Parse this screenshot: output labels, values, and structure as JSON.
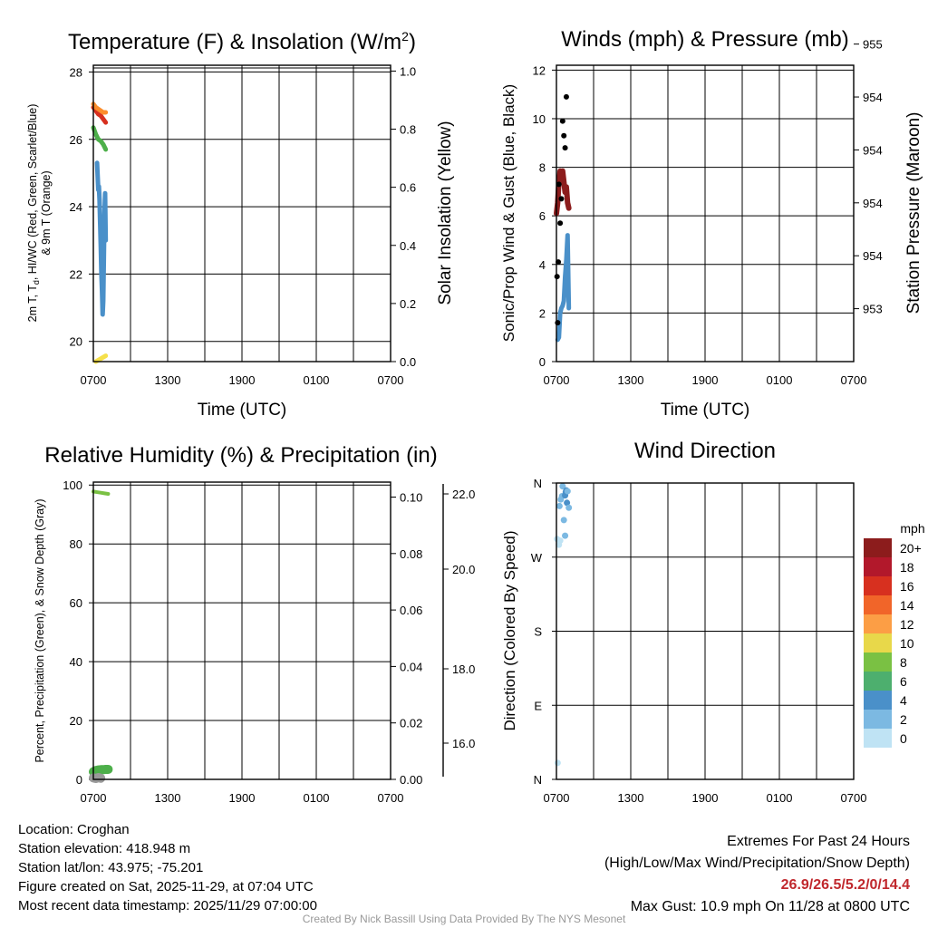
{
  "colors": {
    "temp": "#d7301f",
    "heat_index": "#fc8d2c",
    "dewpoint": "#4daf4a",
    "windchill": "#4a90c9",
    "insolation": "#f5e04a",
    "pressure": "#8c1c1c",
    "gust": "#000000",
    "wind": "#4a90c9",
    "rh": "#7ac143",
    "precip": "#4daf4a",
    "snow": "#999999"
  },
  "chart_data": [
    {
      "id": "temp",
      "type": "line",
      "title": "Temperature (F) & Insolation (W/m",
      "title_sup": "2",
      "title_close": ")",
      "xlabel": "Time (UTC)",
      "ylabel_lines": [
        "2m T, T",
        "d",
        ", HI/WC (Red, Green, Scarlet/Blue)",
        "& 9m T (Orange)"
      ],
      "y2label": "Solar Insolation (Yellow)",
      "xticks": [
        "0700",
        "1300",
        "1900",
        "0100",
        "0700"
      ],
      "ylim": [
        19.4,
        28.2
      ],
      "yticks": [
        "20",
        "22",
        "24",
        "26",
        "28"
      ],
      "y2lim": [
        0,
        1.02
      ],
      "y2ticks": [
        "0.0",
        "0.2",
        "0.4",
        "0.6",
        "0.8",
        "1.0"
      ],
      "xlim": [
        0,
        24
      ],
      "series": [
        {
          "name": "2m T",
          "color": "#d7301f",
          "x": [
            0,
            0.2,
            0.4,
            0.6,
            0.8,
            1.0
          ],
          "y": [
            26.95,
            26.85,
            26.75,
            26.7,
            26.6,
            26.5
          ]
        },
        {
          "name": "9m T",
          "color": "#fc8d2c",
          "x": [
            0,
            0.2,
            0.4,
            0.6,
            0.8,
            1.0
          ],
          "y": [
            27.05,
            26.95,
            26.9,
            26.85,
            26.8,
            26.8
          ]
        },
        {
          "name": "Td",
          "color": "#4daf4a",
          "x": [
            0,
            0.2,
            0.4,
            0.6,
            0.8,
            1.0
          ],
          "y": [
            26.35,
            26.15,
            26.0,
            25.95,
            25.85,
            25.7
          ]
        },
        {
          "name": "WC",
          "color": "#4a90c9",
          "x": [
            0.3,
            0.35,
            0.4,
            0.45,
            0.5,
            0.55,
            0.6,
            0.65,
            0.7,
            0.75,
            0.8,
            0.85,
            0.9,
            0.95,
            1.0
          ],
          "y": [
            25.3,
            24.9,
            24.5,
            24.6,
            24.2,
            23.5,
            22.8,
            22.0,
            21.5,
            20.8,
            21.2,
            22.5,
            23.8,
            24.4,
            23.0
          ]
        },
        {
          "name": "Insolation",
          "color": "#f5e04a",
          "axis": "y2",
          "x": [
            0.2,
            0.6,
            1.0
          ],
          "y": [
            0.0,
            0.01,
            0.02
          ]
        }
      ]
    },
    {
      "id": "wind",
      "type": "line",
      "title": "Winds (mph) & Pressure (mb)",
      "xlabel": "Time (UTC)",
      "ylabel": "Sonic/Prop Wind & Gust (Blue, Black)",
      "y2label": "Station Pressure (Maroon)",
      "xticks": [
        "0700",
        "1300",
        "1900",
        "0100",
        "0700"
      ],
      "ylim": [
        0,
        12.2
      ],
      "yticks": [
        "0",
        "2",
        "4",
        "6",
        "8",
        "10",
        "12"
      ],
      "y2lim": [
        952.5,
        955.3
      ],
      "y2ticks": [
        "953",
        "954",
        "954",
        "954",
        "954",
        "955"
      ],
      "y2tick_values": [
        953.0,
        953.5,
        954.0,
        954.5,
        955.0,
        955.5
      ],
      "xlim": [
        0,
        24
      ],
      "series": [
        {
          "name": "Sonic wind",
          "color": "#4a90c9",
          "x": [
            0.1,
            0.2,
            0.3,
            0.4,
            0.5,
            0.6,
            0.7,
            0.8,
            0.9,
            1.0
          ],
          "y": [
            0.9,
            1.0,
            2.0,
            2.2,
            2.3,
            2.5,
            3.5,
            4.2,
            5.2,
            2.2
          ]
        },
        {
          "name": "Pressure",
          "color": "#8c1c1c",
          "axis": "y2",
          "x": [
            0,
            0.1,
            0.2,
            0.3,
            0.4,
            0.5,
            0.6,
            0.7,
            0.8,
            0.9,
            1.0
          ],
          "y": [
            953.9,
            954.0,
            954.2,
            954.3,
            954.2,
            954.3,
            954.2,
            954.1,
            954.15,
            954.0,
            953.95
          ]
        }
      ],
      "gust_points": {
        "x": [
          0.05,
          0.1,
          0.15,
          0.2,
          0.3,
          0.4,
          0.5,
          0.6,
          0.7,
          0.8
        ],
        "y": [
          3.5,
          1.6,
          4.1,
          7.3,
          5.7,
          6.7,
          9.9,
          9.3,
          8.8,
          10.9
        ]
      }
    },
    {
      "id": "rh",
      "type": "line",
      "title": "Relative Humidity (%) & Precipitation (in)",
      "ylabel": "Percent, Precipitation (Green), & Snow Depth (Gray)",
      "xticks": [
        "0700",
        "1300",
        "1900",
        "0100",
        "0700"
      ],
      "ylim": [
        0,
        101
      ],
      "yticks": [
        "0",
        "20",
        "40",
        "60",
        "80",
        "100"
      ],
      "y2lim": [
        0,
        0.1053
      ],
      "y2ticks": [
        "0.00",
        "0.02",
        "0.04",
        "0.06",
        "0.08",
        "0.10"
      ],
      "y3ticks": [
        "16.0",
        "18.0",
        "20.0",
        "22.0"
      ],
      "xlim": [
        0,
        24
      ],
      "series": [
        {
          "name": "RH",
          "color": "#7ac143",
          "x": [
            0,
            0.3,
            0.6,
            0.9,
            1.2
          ],
          "y": [
            97.8,
            97.6,
            97.4,
            97.2,
            97.0
          ]
        },
        {
          "name": "Precip",
          "color": "#4daf4a",
          "x": [
            0,
            0.2,
            0.4,
            0.6,
            0.8,
            1.0,
            1.2
          ],
          "y": [
            2.6,
            3.0,
            3.2,
            3.3,
            3.3,
            3.4,
            3.4
          ]
        },
        {
          "name": "Snow depth",
          "color": "#999999",
          "x": [
            0,
            0.2,
            0.4,
            0.6
          ],
          "y": [
            0.5,
            0.3,
            0.6,
            0.4
          ]
        }
      ]
    },
    {
      "id": "dir",
      "type": "scatter",
      "title": "Wind Direction",
      "ylabel": "Direction (Colored By Speed)",
      "xticks": [
        "0700",
        "1300",
        "1900",
        "0100",
        "0700"
      ],
      "yticks": [
        "N",
        "E",
        "S",
        "W",
        "N"
      ],
      "ylim": [
        0,
        360
      ],
      "xlim": [
        0,
        24
      ],
      "points": [
        {
          "x": 0.1,
          "dir": 20,
          "speed": 1.0
        },
        {
          "x": 0.05,
          "dir": 292,
          "speed": 1.0
        },
        {
          "x": 0.2,
          "dir": 285,
          "speed": 1.0
        },
        {
          "x": 0.3,
          "dir": 290,
          "speed": 1.5
        },
        {
          "x": 0.25,
          "dir": 332,
          "speed": 2.5
        },
        {
          "x": 0.35,
          "dir": 340,
          "speed": 3.0
        },
        {
          "x": 0.45,
          "dir": 344,
          "speed": 2.5
        },
        {
          "x": 0.5,
          "dir": 356,
          "speed": 2.0
        },
        {
          "x": 0.7,
          "dir": 345,
          "speed": 4.0
        },
        {
          "x": 0.8,
          "dir": 351,
          "speed": 4.5
        },
        {
          "x": 0.75,
          "dir": 349,
          "speed": 5.0
        },
        {
          "x": 0.9,
          "dir": 350,
          "speed": 3.5
        },
        {
          "x": 0.85,
          "dir": 336,
          "speed": 4.0
        },
        {
          "x": 1.0,
          "dir": 330,
          "speed": 3.0
        },
        {
          "x": 0.6,
          "dir": 315,
          "speed": 2.5
        },
        {
          "x": 0.7,
          "dir": 296,
          "speed": 2.5
        }
      ],
      "legend": {
        "title": "mph",
        "labels": [
          "20+",
          "18",
          "16",
          "14",
          "12",
          "10",
          "8",
          "6",
          "4",
          "2",
          "0"
        ],
        "colors": [
          "#8c1c1c",
          "#b2182b",
          "#d7301f",
          "#f16529",
          "#fc9e45",
          "#e8d84a",
          "#7ac143",
          "#4daf6e",
          "#4a90c9",
          "#7cb9e2",
          "#bfe3f4"
        ]
      }
    }
  ],
  "meta": {
    "location": "Location: Croghan",
    "elevation": "Station elevation: 418.948 m",
    "latlon": "Station lat/lon: 43.975; -75.201",
    "created": "Figure created on Sat, 2025-11-29, at 07:04 UTC",
    "recent": "Most recent data timestamp: 2025/11/29 07:00:00"
  },
  "extremes": {
    "title": "Extremes For Past 24 Hours",
    "subtitle": "(High/Low/Max Wind/Precipitation/Snow Depth)",
    "values": "26.9/26.5/5.2/0/14.4",
    "gust": "Max Gust: 10.9 mph On 11/28 at 0800 UTC"
  },
  "credit": "Created By Nick Bassill Using Data Provided By The NYS Mesonet"
}
